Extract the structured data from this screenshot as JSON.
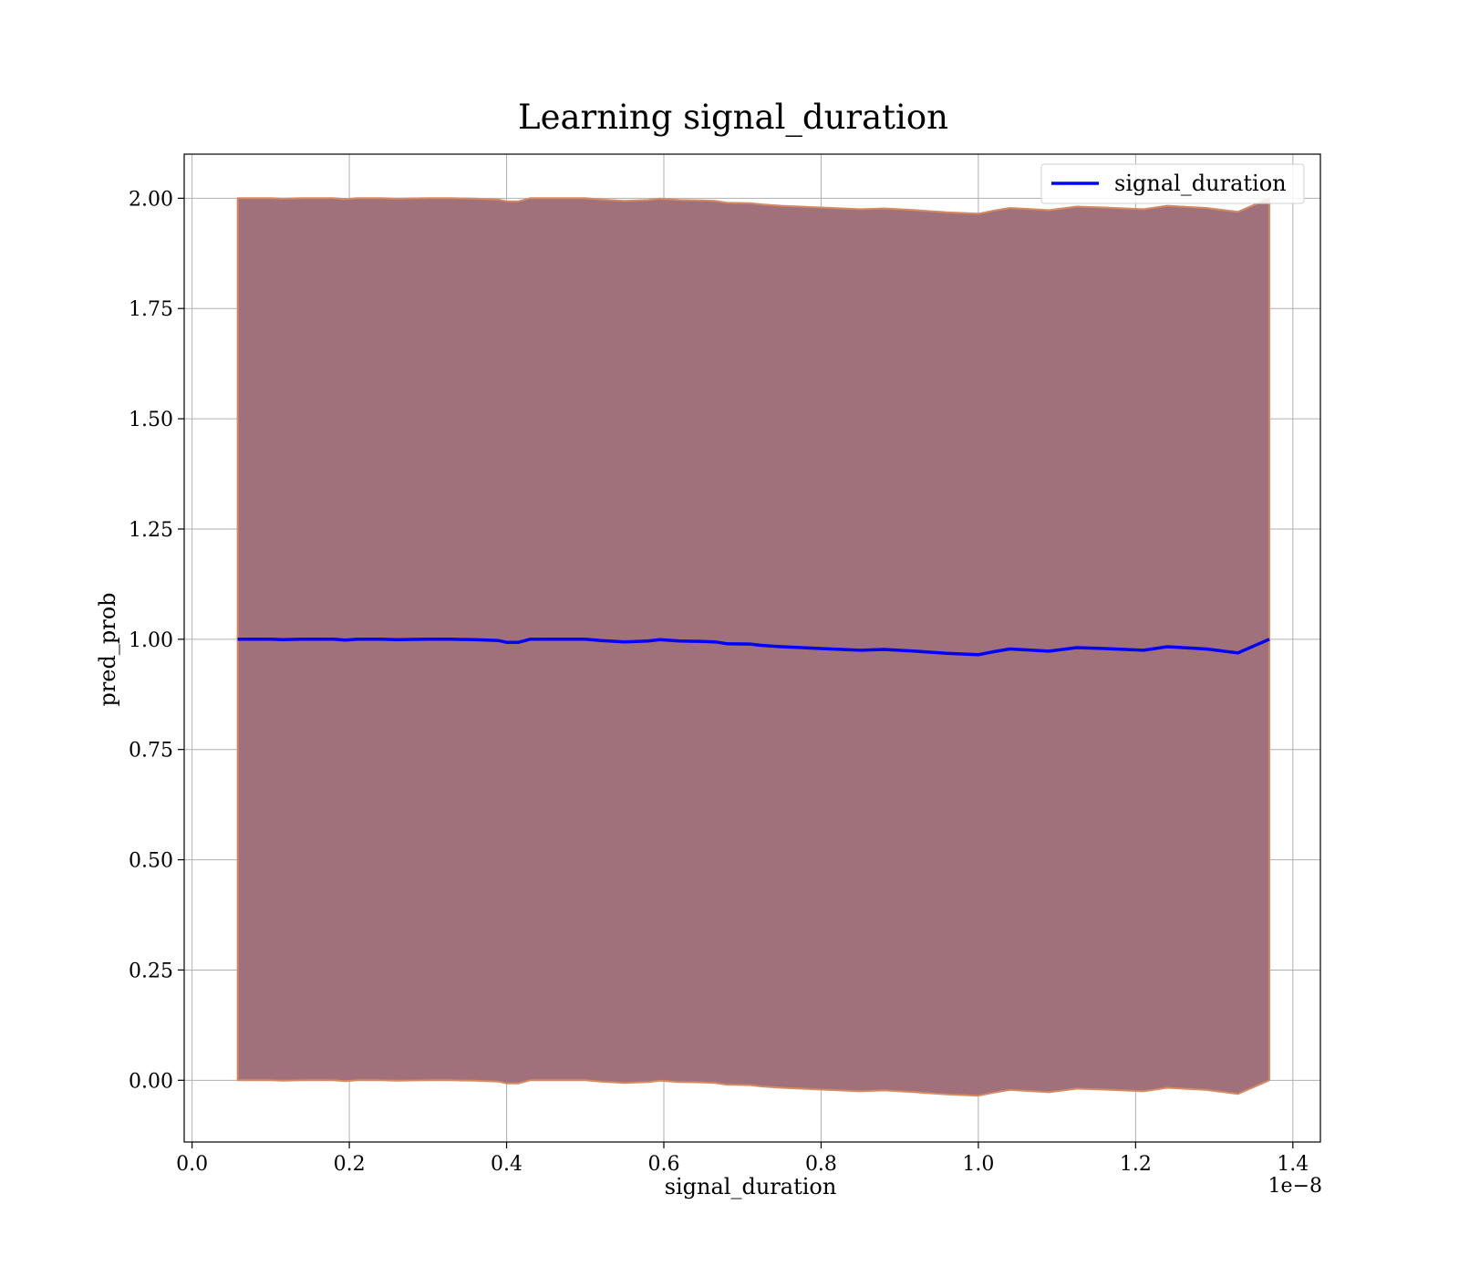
{
  "chart_data": {
    "type": "area",
    "title": "Learning signal_duration",
    "xlabel": "signal_duration",
    "ylabel": "pred_prob",
    "x_offset_label": "1e−8",
    "xlim": [
      -0.01,
      1.435
    ],
    "ylim": [
      -0.14,
      2.1
    ],
    "xticks": [
      0.0,
      0.2,
      0.4,
      0.6,
      0.8,
      1.0,
      1.2,
      1.4
    ],
    "xtick_labels": [
      "0.0",
      "0.2",
      "0.4",
      "0.6",
      "0.8",
      "1.0",
      "1.2",
      "1.4"
    ],
    "yticks": [
      0.0,
      0.25,
      0.5,
      0.75,
      1.0,
      1.25,
      1.5,
      1.75,
      2.0
    ],
    "ytick_labels": [
      "0.00",
      "0.25",
      "0.50",
      "0.75",
      "1.00",
      "1.25",
      "1.50",
      "1.75",
      "2.00"
    ],
    "grid": true,
    "legend_position": "top-right",
    "colors": {
      "band_fill": "#a0717a",
      "band_edge": "#d48a62",
      "line": "#0000ff"
    },
    "x": [
      0.058,
      0.08,
      0.1,
      0.115,
      0.14,
      0.18,
      0.195,
      0.21,
      0.24,
      0.26,
      0.3,
      0.33,
      0.36,
      0.39,
      0.4,
      0.415,
      0.43,
      0.47,
      0.5,
      0.52,
      0.55,
      0.58,
      0.595,
      0.62,
      0.65,
      0.665,
      0.68,
      0.71,
      0.725,
      0.75,
      0.8,
      0.85,
      0.88,
      0.92,
      0.96,
      1.0,
      1.02,
      1.04,
      1.09,
      1.125,
      1.16,
      1.21,
      1.24,
      1.29,
      1.33,
      1.37
    ],
    "series": [
      {
        "name": "signal_duration",
        "values": [
          1.0,
          1.0,
          1.0,
          0.999,
          1.0,
          1.0,
          0.998,
          1.0,
          1.0,
          0.999,
          1.0,
          1.0,
          0.999,
          0.997,
          0.993,
          0.993,
          1.0,
          1.0,
          1.0,
          0.997,
          0.994,
          0.996,
          0.999,
          0.996,
          0.995,
          0.994,
          0.99,
          0.989,
          0.986,
          0.983,
          0.979,
          0.975,
          0.977,
          0.973,
          0.968,
          0.965,
          0.972,
          0.978,
          0.973,
          0.981,
          0.979,
          0.975,
          0.983,
          0.978,
          0.969,
          1.0
        ],
        "band_lower": [
          0.0,
          0.0,
          0.0,
          -0.001,
          0.0,
          0.0,
          -0.002,
          0.0,
          0.0,
          -0.001,
          0.0,
          0.0,
          -0.001,
          -0.003,
          -0.007,
          -0.007,
          0.0,
          0.0,
          0.0,
          -0.003,
          -0.006,
          -0.004,
          -0.001,
          -0.004,
          -0.005,
          -0.006,
          -0.01,
          -0.011,
          -0.014,
          -0.017,
          -0.021,
          -0.025,
          -0.023,
          -0.027,
          -0.032,
          -0.035,
          -0.028,
          -0.022,
          -0.027,
          -0.019,
          -0.021,
          -0.025,
          -0.017,
          -0.022,
          -0.031,
          0.0
        ],
        "band_upper": [
          2.0,
          2.0,
          2.0,
          1.999,
          2.0,
          2.0,
          1.998,
          2.0,
          2.0,
          1.999,
          2.0,
          2.0,
          1.999,
          1.997,
          1.993,
          1.993,
          2.0,
          2.0,
          2.0,
          1.997,
          1.994,
          1.996,
          1.999,
          1.996,
          1.995,
          1.994,
          1.99,
          1.989,
          1.986,
          1.983,
          1.979,
          1.975,
          1.977,
          1.973,
          1.968,
          1.965,
          1.972,
          1.978,
          1.973,
          1.981,
          1.979,
          1.975,
          1.983,
          1.978,
          1.969,
          2.0
        ]
      }
    ]
  }
}
